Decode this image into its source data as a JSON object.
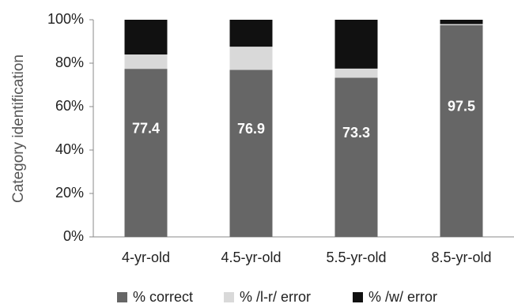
{
  "chart_data": {
    "type": "stacked_bar",
    "y_label": "Category identification",
    "categories": [
      "4-yr-old",
      "4.5-yr-old",
      "5.5-yr-old",
      "8.5-yr-old"
    ],
    "series": [
      {
        "name": "% correct",
        "color": "#666666",
        "values": [
          77.4,
          76.9,
          73.3,
          97.5
        ]
      },
      {
        "name": "% /l-r/ error",
        "color": "#d9d9d9",
        "values": [
          6.6,
          10.7,
          4.2,
          0.5
        ]
      },
      {
        "name": "% /w/ error",
        "color": "#111111",
        "values": [
          16.0,
          12.4,
          22.5,
          2.0
        ]
      }
    ],
    "data_labels_series": 0,
    "ylim": [
      0,
      100
    ],
    "yticks": [
      {
        "value": 0,
        "label": "0%"
      },
      {
        "value": 20,
        "label": "20%"
      },
      {
        "value": 40,
        "label": "40%"
      },
      {
        "value": 60,
        "label": "60%"
      },
      {
        "value": 80,
        "label": "80%"
      },
      {
        "value": 100,
        "label": "100%"
      }
    ],
    "grid": false,
    "legend": "bottom"
  }
}
